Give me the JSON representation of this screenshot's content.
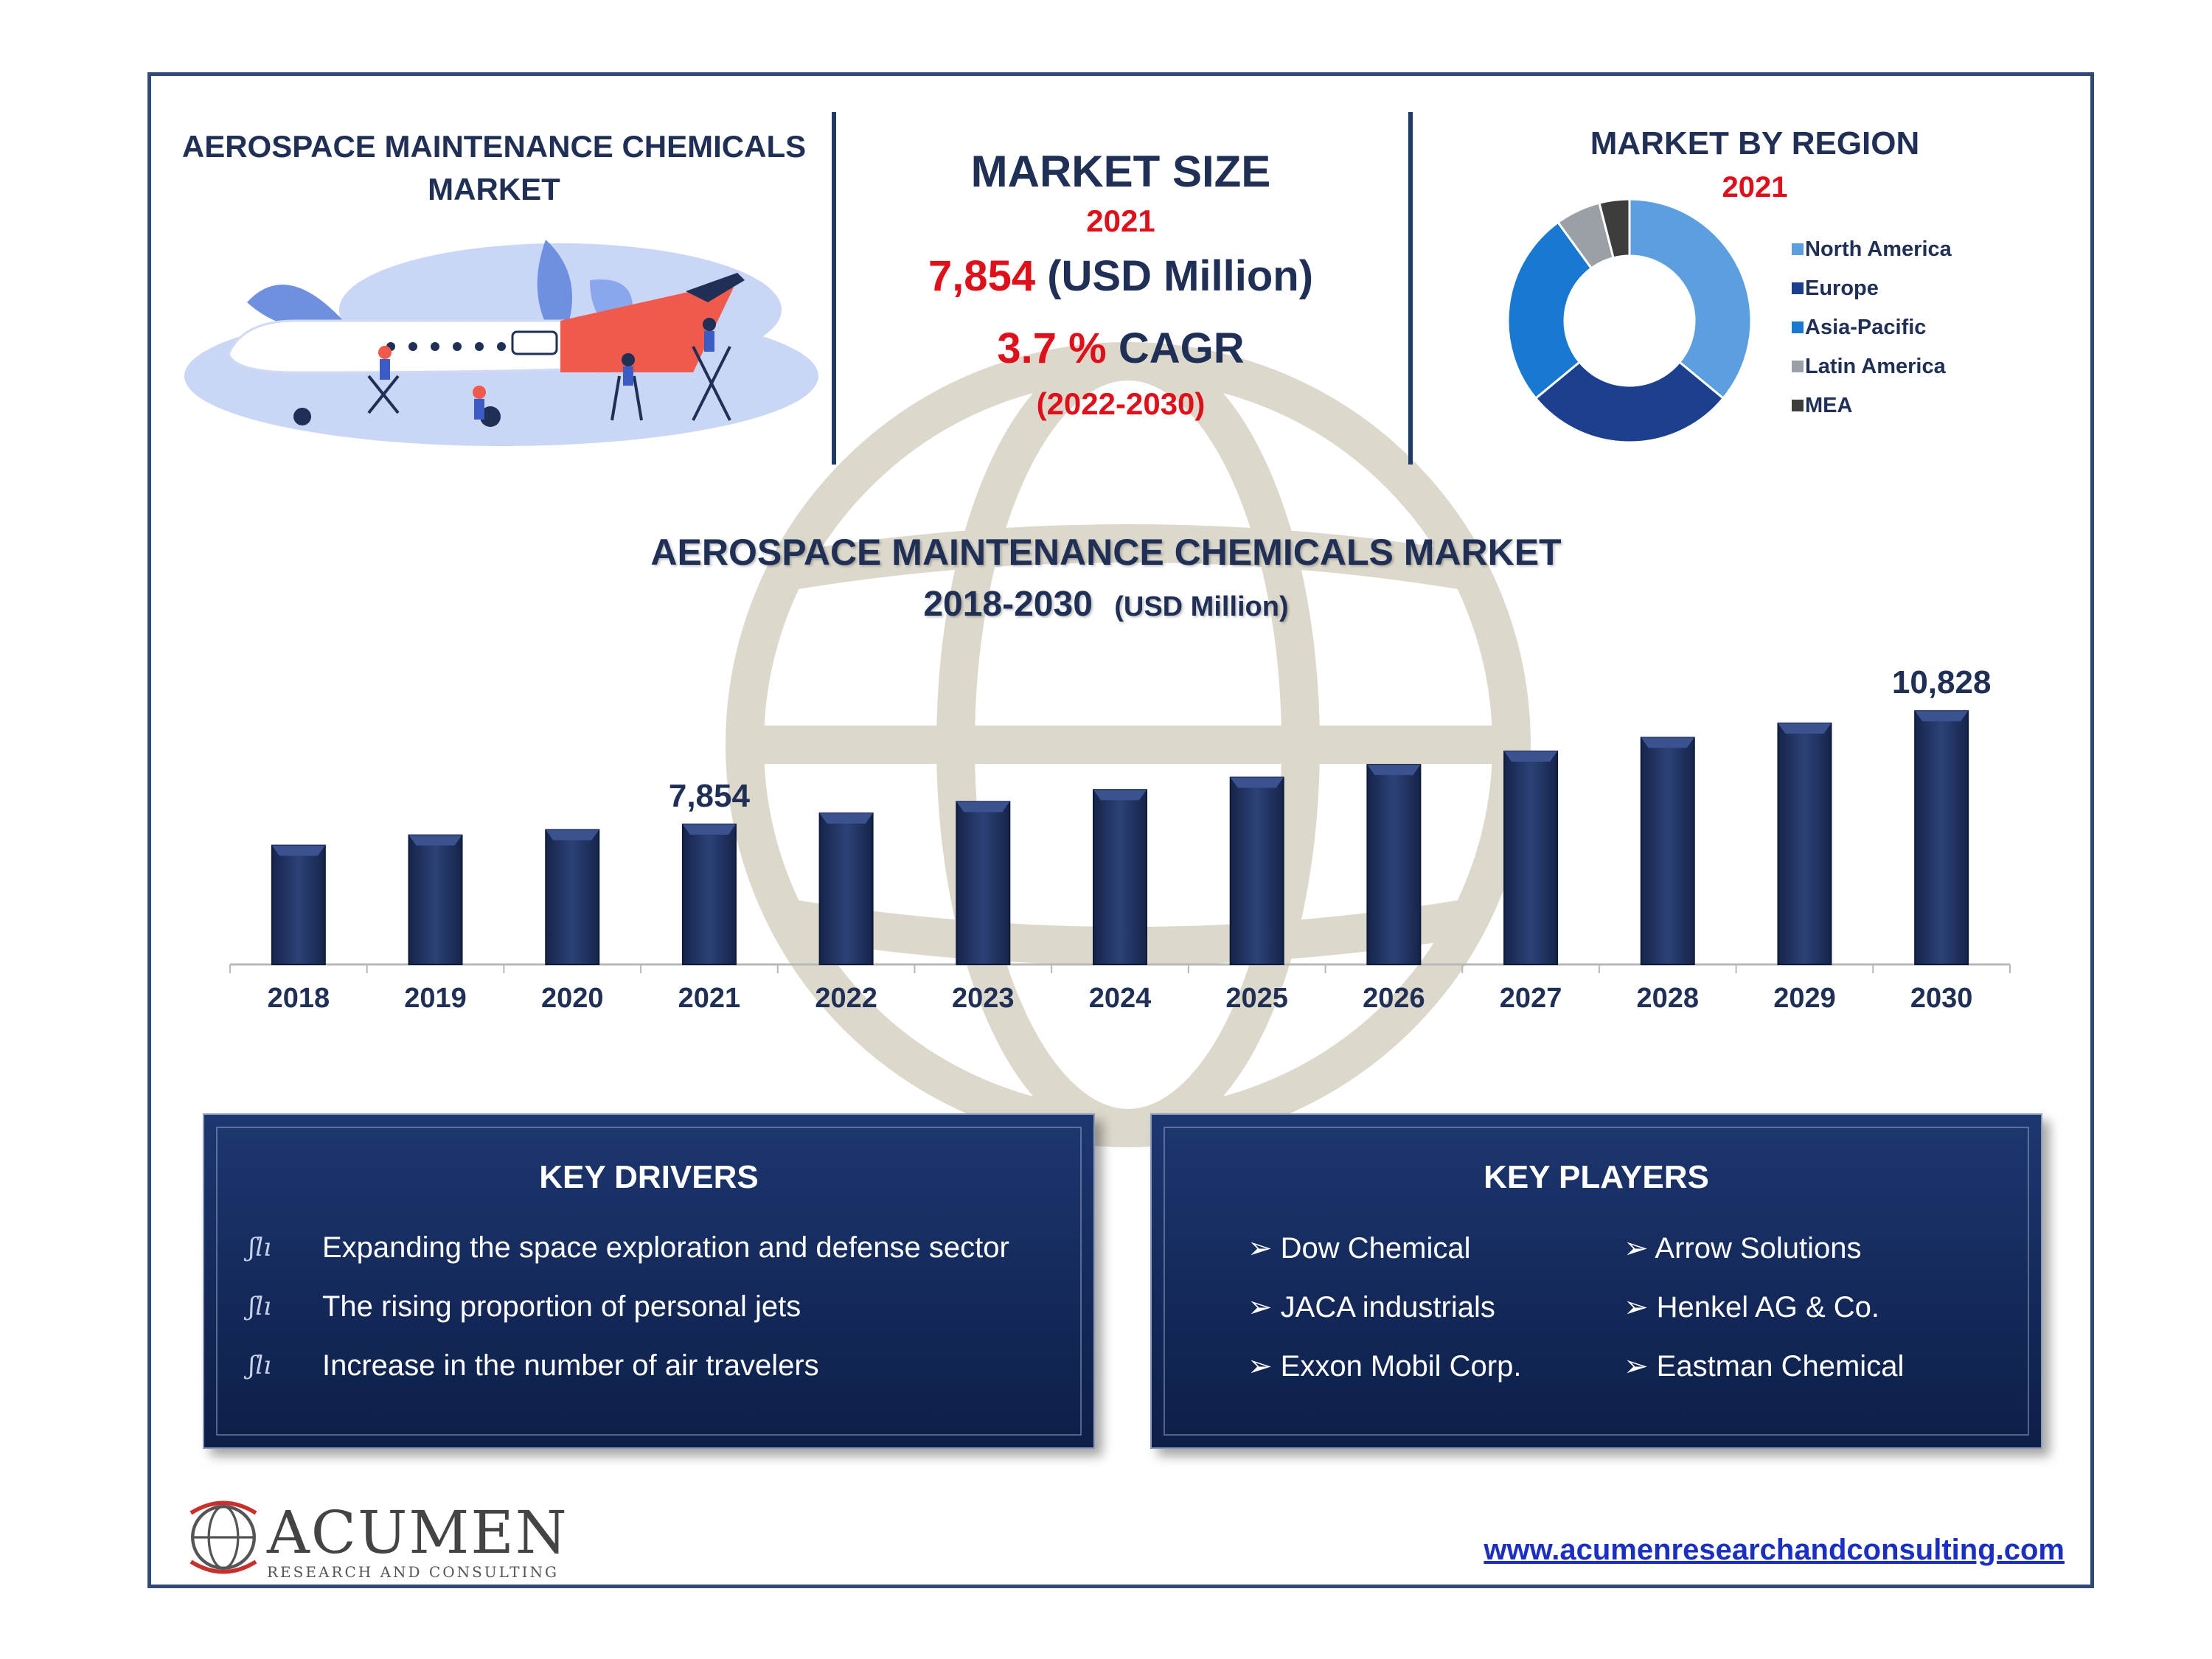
{
  "header": {
    "left_title_line1": "AEROSPACE MAINTENANCE CHEMICALS",
    "left_title_line2": "MARKET",
    "market_size_title": "MARKET SIZE",
    "market_size_year": "2021",
    "market_size_value": "7,854",
    "market_size_unit": "(USD Million)",
    "cagr_value": "3.7 %",
    "cagr_label": "CAGR",
    "cagr_period": "(2022-2030)",
    "region_title": "MARKET BY REGION",
    "region_year": "2021"
  },
  "chart_data": [
    {
      "type": "pie",
      "variant": "donut",
      "title": "MARKET BY REGION",
      "subtitle": "2021",
      "labels": [
        "North America",
        "Europe",
        "Asia-Pacific",
        "Latin America",
        "MEA"
      ],
      "values": [
        36,
        28,
        26,
        6,
        4
      ],
      "colors": [
        "#5b9fe0",
        "#1c3f8f",
        "#1878d2",
        "#9aa0a6",
        "#3d3d3d"
      ],
      "legend": "right"
    },
    {
      "type": "bar",
      "title": "AEROSPACE MAINTENANCE CHEMICALS MARKET",
      "subtitle": "2018-2030",
      "unit_label": "(USD Million)",
      "categories": [
        "2018",
        "2019",
        "2020",
        "2021",
        "2022",
        "2023",
        "2024",
        "2025",
        "2026",
        "2027",
        "2028",
        "2029",
        "2030"
      ],
      "values": [
        7300,
        7570,
        7710,
        7854,
        8145,
        8447,
        8759,
        9083,
        9419,
        9768,
        10129,
        10504,
        10828
      ],
      "data_labels": {
        "2021": "7,854",
        "2030": "10,828"
      },
      "color": "#1f2f5c",
      "grid": false
    }
  ],
  "drivers": {
    "title": "KEY DRIVERS",
    "items": [
      "Expanding the space exploration and defense sector",
      "The rising proportion of personal jets",
      "Increase in the number of air travelers"
    ]
  },
  "players": {
    "title": "KEY PLAYERS",
    "col1": [
      "Dow Chemical",
      "JACA industrials",
      "Exxon Mobil Corp."
    ],
    "col2": [
      "Arrow Solutions",
      "Henkel AG & Co.",
      "Eastman Chemical"
    ]
  },
  "footer": {
    "logo_name": "ACUMEN",
    "logo_tagline": "RESEARCH AND CONSULTING",
    "url": "www.acumenresearchandconsulting.com"
  }
}
